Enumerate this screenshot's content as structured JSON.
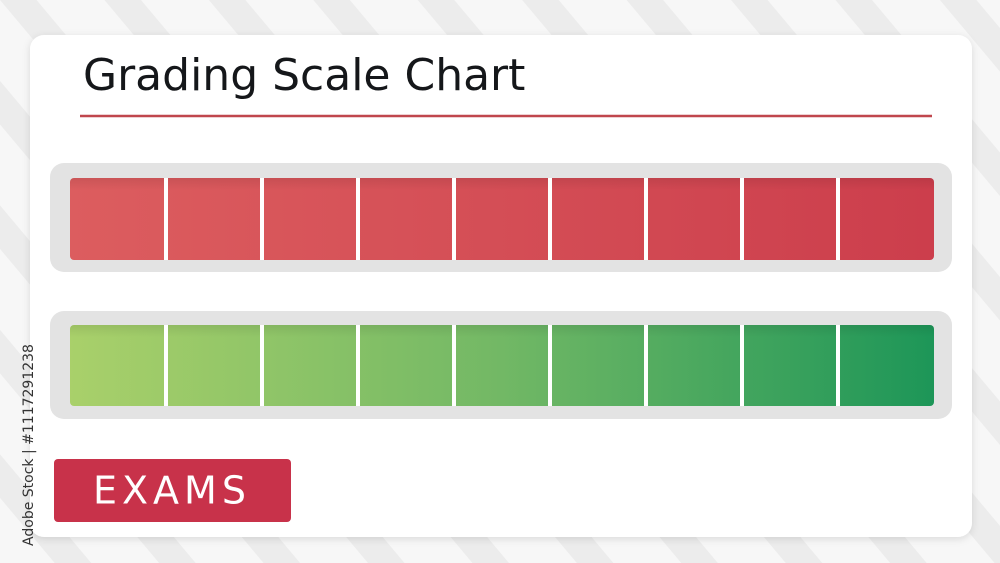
{
  "header": {
    "title": "Grading Scale Chart"
  },
  "button": {
    "label": "EXAMS"
  },
  "credit": "Adobe Stock | #1117291238"
}
